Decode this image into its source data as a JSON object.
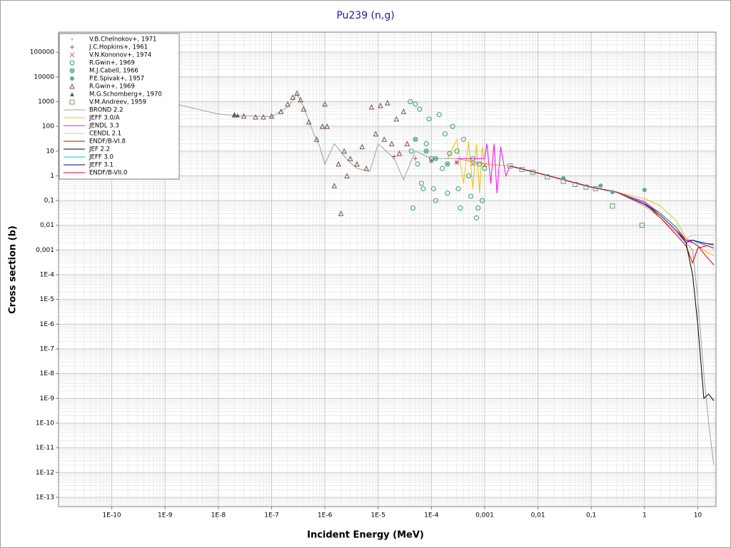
{
  "chart_data": {
    "type": "line",
    "title": "Pu239 (n,g)",
    "x_label": "Incident Energy (MeV)",
    "y_label": "Cross section (b)",
    "log_x": true,
    "log_y": true,
    "grid": true,
    "minor_grid": [
      2,
      3,
      4,
      5,
      6,
      7,
      8,
      9
    ],
    "legend": "upper left",
    "xlim": [
      1e-11,
      22
    ],
    "ylim": [
      4.2e-14,
      650000
    ],
    "xticks": [
      {
        "value": 1e-10,
        "label": "1E-10"
      },
      {
        "value": 1e-09,
        "label": "1E-9"
      },
      {
        "value": 1e-08,
        "label": "1E-8"
      },
      {
        "value": 1e-07,
        "label": "1E-7"
      },
      {
        "value": 1e-06,
        "label": "1E-6"
      },
      {
        "value": 1e-05,
        "label": "1E-5"
      },
      {
        "value": 0.0001,
        "label": "1E-4"
      },
      {
        "value": 0.001,
        "label": "0,001"
      },
      {
        "value": 0.01,
        "label": "0,01"
      },
      {
        "value": 0.1,
        "label": "0,1"
      },
      1,
      10
    ],
    "yticks": [
      100000,
      10000,
      1000,
      100,
      10,
      1,
      {
        "value": 0.1,
        "label": "0,1"
      },
      {
        "value": 0.01,
        "label": "0,01"
      },
      {
        "value": 0.001,
        "label": "0,001"
      },
      {
        "value": 0.0001,
        "label": "1E-4"
      },
      {
        "value": 1e-05,
        "label": "1E-5"
      },
      {
        "value": 1e-06,
        "label": "1E-6"
      },
      {
        "value": 1e-07,
        "label": "1E-7"
      },
      {
        "value": 1e-08,
        "label": "1E-8"
      },
      {
        "value": 1e-09,
        "label": "1E-9"
      },
      {
        "value": 1e-10,
        "label": "1E-10"
      },
      {
        "value": 1e-11,
        "label": "1E-11"
      },
      {
        "value": 1e-12,
        "label": "1E-12"
      },
      {
        "value": 1e-13,
        "label": "1E-13"
      }
    ],
    "series": [
      {
        "name": "V.B.Chelnokov+, 1971",
        "color": "#c0c0c0",
        "marker": "dot",
        "x": [
          0.0005,
          0.0007,
          0.001
        ],
        "values": [
          4,
          3,
          3
        ]
      },
      {
        "name": "J.C.Hopkins+, 1961",
        "color": "#a05070",
        "marker": "plus",
        "x": [
          2e-05,
          5e-05,
          0.0001,
          0.0003
        ],
        "values": [
          6,
          5,
          4,
          3.5
        ]
      },
      {
        "name": "V.N.Kononov+, 1974",
        "color": "#d06080",
        "marker": "x",
        "x": [
          0.0001,
          0.0003,
          0.0006,
          0.001
        ],
        "values": [
          4,
          3.5,
          3,
          2.8
        ]
      },
      {
        "name": "R.Gwin+, 1969",
        "color": "#3a9a6a",
        "marker": "circle",
        "x": [
          4e-05,
          4.5e-05,
          5e-05,
          5.5e-05,
          6e-05,
          7e-05,
          8e-05,
          9e-05,
          0.0001,
          0.00012,
          0.00014,
          0.00016,
          0.00018,
          0.0002,
          0.00025,
          0.0003,
          0.00035,
          0.0004,
          0.0005,
          0.0006,
          0.0007,
          0.0008,
          0.0009,
          0.001,
          4.2e-05,
          6.5e-05,
          0.00011,
          0.00022,
          0.00032,
          0.00055,
          0.00075
        ],
        "values": [
          1000,
          0.05,
          800,
          3,
          500,
          0.3,
          20,
          200,
          5,
          0.1,
          300,
          2,
          50,
          0.2,
          100,
          10,
          0.05,
          30,
          1,
          5,
          0.02,
          3,
          0.1,
          2,
          10,
          0.5,
          0.3,
          8,
          0.3,
          0.15,
          0.05
        ]
      },
      {
        "name": "M.J.Cabell, 1966",
        "color": "#3a9a6a",
        "marker": "circle-x",
        "x": [
          5e-05,
          8e-05,
          0.00012,
          0.0002
        ],
        "values": [
          30,
          10,
          5,
          3
        ]
      },
      {
        "name": "P.E.Spivak+, 1957",
        "color": "#5aaa9a",
        "marker": "filled-circle",
        "x": [
          0.03,
          0.15,
          0.25,
          1
        ],
        "values": [
          0.8,
          0.4,
          0.22,
          0.27
        ]
      },
      {
        "name": "R.Gwin+, 1969",
        "color": "#7a5040",
        "marker": "triangle",
        "x": [
          2e-08,
          3e-08,
          5e-08,
          7e-08,
          1e-07,
          1.5e-07,
          2e-07,
          2.5e-07,
          3e-07,
          3.5e-07,
          4e-07,
          5e-07,
          7e-07,
          9e-07,
          1e-06,
          1.1e-06,
          1.5e-06,
          1.8e-06,
          2e-06,
          2.3e-06,
          2.6e-06,
          3e-06,
          4e-06,
          5e-06,
          6e-06,
          7.5e-06,
          9e-06,
          1.1e-05,
          1.3e-05,
          1.5e-05,
          1.8e-05,
          2.2e-05,
          2.5e-05,
          3e-05,
          3.5e-05
        ],
        "values": [
          290,
          260,
          240,
          240,
          260,
          400,
          800,
          1500,
          2200,
          1200,
          500,
          150,
          30,
          100,
          800,
          100,
          0.4,
          3,
          0.03,
          10,
          1,
          5,
          3,
          15,
          2,
          600,
          50,
          700,
          30,
          900,
          20,
          200,
          8,
          400,
          20
        ]
      },
      {
        "name": "M.G.Schomberg+, 1970",
        "color": "#606060",
        "marker": "filled-triangle",
        "x": [
          2e-08,
          2.3e-08
        ],
        "values": [
          300,
          280
        ]
      },
      {
        "name": "V.M.Andreev, 1959",
        "color": "#60a060",
        "marker": "square",
        "x": [
          0.003,
          0.005,
          0.008,
          0.015,
          0.03,
          0.05,
          0.08,
          0.12,
          0.25,
          0.9
        ],
        "values": [
          2.5,
          1.8,
          1.4,
          0.9,
          0.6,
          0.45,
          0.35,
          0.3,
          0.06,
          0.01
        ]
      },
      {
        "name": "BROND 2.2",
        "color": "#a0a0a0",
        "x": [
          2e-10,
          1e-09,
          1e-08,
          2.5e-08,
          1e-07,
          2e-07,
          3e-07,
          4e-07,
          6e-07,
          8e-07,
          1e-06,
          1.5e-06,
          2.5e-06,
          4e-06,
          7e-06,
          1e-05,
          2e-05,
          3e-05,
          5e-05,
          0.0001,
          0.0003,
          0.001,
          0.003,
          0.01,
          0.03,
          0.1,
          0.3,
          1,
          2,
          4,
          6,
          8,
          10,
          13,
          16,
          20
        ],
        "values": [
          2200,
          1000,
          316,
          270,
          250,
          600,
          2000,
          600,
          60,
          15,
          3,
          20,
          5,
          2,
          1.5,
          20,
          5,
          0.7,
          10,
          5,
          5,
          3,
          2.5,
          1.3,
          0.7,
          0.35,
          0.22,
          0.06,
          0.02,
          0.005,
          0.002,
          0.001,
          1e-05,
          1e-08,
          1e-10,
          2e-12
        ]
      },
      {
        "name": "JEFF 3.0/A",
        "color": "#f0c000",
        "x": [
          0.0002,
          0.0003,
          0.0004,
          0.0005,
          0.0006,
          0.0007,
          0.0008,
          0.0009,
          0.001,
          0.003,
          0.01,
          0.03,
          0.1,
          0.3,
          1,
          2,
          4,
          6,
          8,
          10,
          15,
          20
        ],
        "values": [
          5,
          30,
          0.5,
          25,
          0.3,
          20,
          0.2,
          15,
          3,
          2.5,
          1.3,
          0.7,
          0.35,
          0.22,
          0.12,
          0.06,
          0.015,
          0.003,
          0.002,
          0.0015,
          0.0008,
          0.0006
        ]
      },
      {
        "name": "JENDL 3.3",
        "color": "#ff00ff",
        "x": [
          0.0003,
          0.001,
          0.0011,
          0.0013,
          0.0015,
          0.0017,
          0.002,
          0.0025,
          0.003,
          0.01,
          0.03,
          0.1,
          0.3,
          1,
          2,
          4,
          6,
          8,
          10,
          15,
          20
        ],
        "values": [
          5,
          5,
          20,
          0.5,
          20,
          0.2,
          15,
          1,
          2.5,
          1.3,
          0.7,
          0.35,
          0.22,
          0.09,
          0.03,
          0.008,
          0.0025,
          0.0025,
          0.002,
          0.0015,
          0.0012
        ]
      },
      {
        "name": "CENDL 2.1",
        "color": "#c8c8c8",
        "x": [
          0.003,
          0.01,
          0.03,
          0.1,
          0.3,
          1,
          2,
          4,
          6,
          8,
          10,
          15,
          20
        ],
        "values": [
          2.5,
          1.3,
          0.7,
          0.35,
          0.22,
          0.07,
          0.03,
          0.008,
          0.003,
          0.004,
          0.004,
          0.004,
          0.004
        ]
      },
      {
        "name": "ENDF/B-VI.8",
        "color": "#cc0000",
        "x": [
          0.003,
          0.01,
          0.03,
          0.1,
          0.3,
          1,
          2,
          4,
          6,
          8,
          10,
          15,
          20
        ],
        "values": [
          2.5,
          1.3,
          0.7,
          0.35,
          0.22,
          0.08,
          0.02,
          0.004,
          0.0015,
          0.0003,
          0.0012,
          0.0015,
          0.0012
        ]
      },
      {
        "name": "JEF 2.2",
        "color": "#000000",
        "x": [
          0.003,
          0.01,
          0.03,
          0.1,
          0.3,
          1,
          2,
          4,
          6,
          8,
          10,
          13,
          16,
          20
        ],
        "values": [
          2.5,
          1.3,
          0.7,
          0.35,
          0.22,
          0.07,
          0.03,
          0.008,
          0.002,
          0.0001,
          1e-06,
          1e-09,
          1.5e-09,
          8e-10
        ]
      },
      {
        "name": "JEFF 3.0",
        "color": "#00c0e0",
        "x": [
          0.003,
          0.01,
          0.03,
          0.1,
          0.3,
          1,
          2,
          4,
          6,
          8,
          10,
          15,
          20
        ],
        "values": [
          2.5,
          1.3,
          0.7,
          0.35,
          0.22,
          0.08,
          0.03,
          0.008,
          0.002,
          0.0025,
          0.002,
          0.0018,
          0.0018
        ]
      },
      {
        "name": "JEFF 3.1",
        "color": "#000080",
        "x": [
          0.003,
          0.01,
          0.03,
          0.1,
          0.3,
          1,
          2,
          4,
          6,
          8,
          10,
          15,
          20
        ],
        "values": [
          2.5,
          1.3,
          0.7,
          0.35,
          0.22,
          0.07,
          0.025,
          0.006,
          0.002,
          0.0025,
          0.0022,
          0.0018,
          0.0016
        ]
      },
      {
        "name": "ENDF/B-VII.0",
        "color": "#e00020",
        "x": [
          0.003,
          0.01,
          0.03,
          0.1,
          0.3,
          1,
          2,
          4,
          6,
          8,
          10,
          15,
          20
        ],
        "values": [
          2.5,
          1.3,
          0.7,
          0.35,
          0.22,
          0.07,
          0.025,
          0.006,
          0.0025,
          0.002,
          0.0015,
          0.0005,
          0.00025
        ]
      }
    ]
  }
}
